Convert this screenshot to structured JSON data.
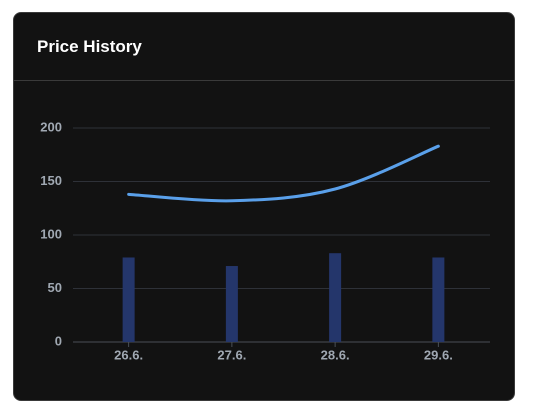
{
  "chart_data": {
    "type": "bar",
    "title": "Price History",
    "categories": [
      "26.6.",
      "27.6.",
      "28.6.",
      "29.6."
    ],
    "series": [
      {
        "type": "bar",
        "color": "#24366b",
        "values": [
          79,
          71,
          83,
          79
        ]
      },
      {
        "type": "line",
        "color": "#5aa0ea",
        "values": [
          138,
          132,
          143,
          183
        ]
      }
    ],
    "ylim": [
      0,
      200
    ],
    "yticks": [
      0,
      50,
      100,
      150,
      200
    ],
    "grid": true
  }
}
